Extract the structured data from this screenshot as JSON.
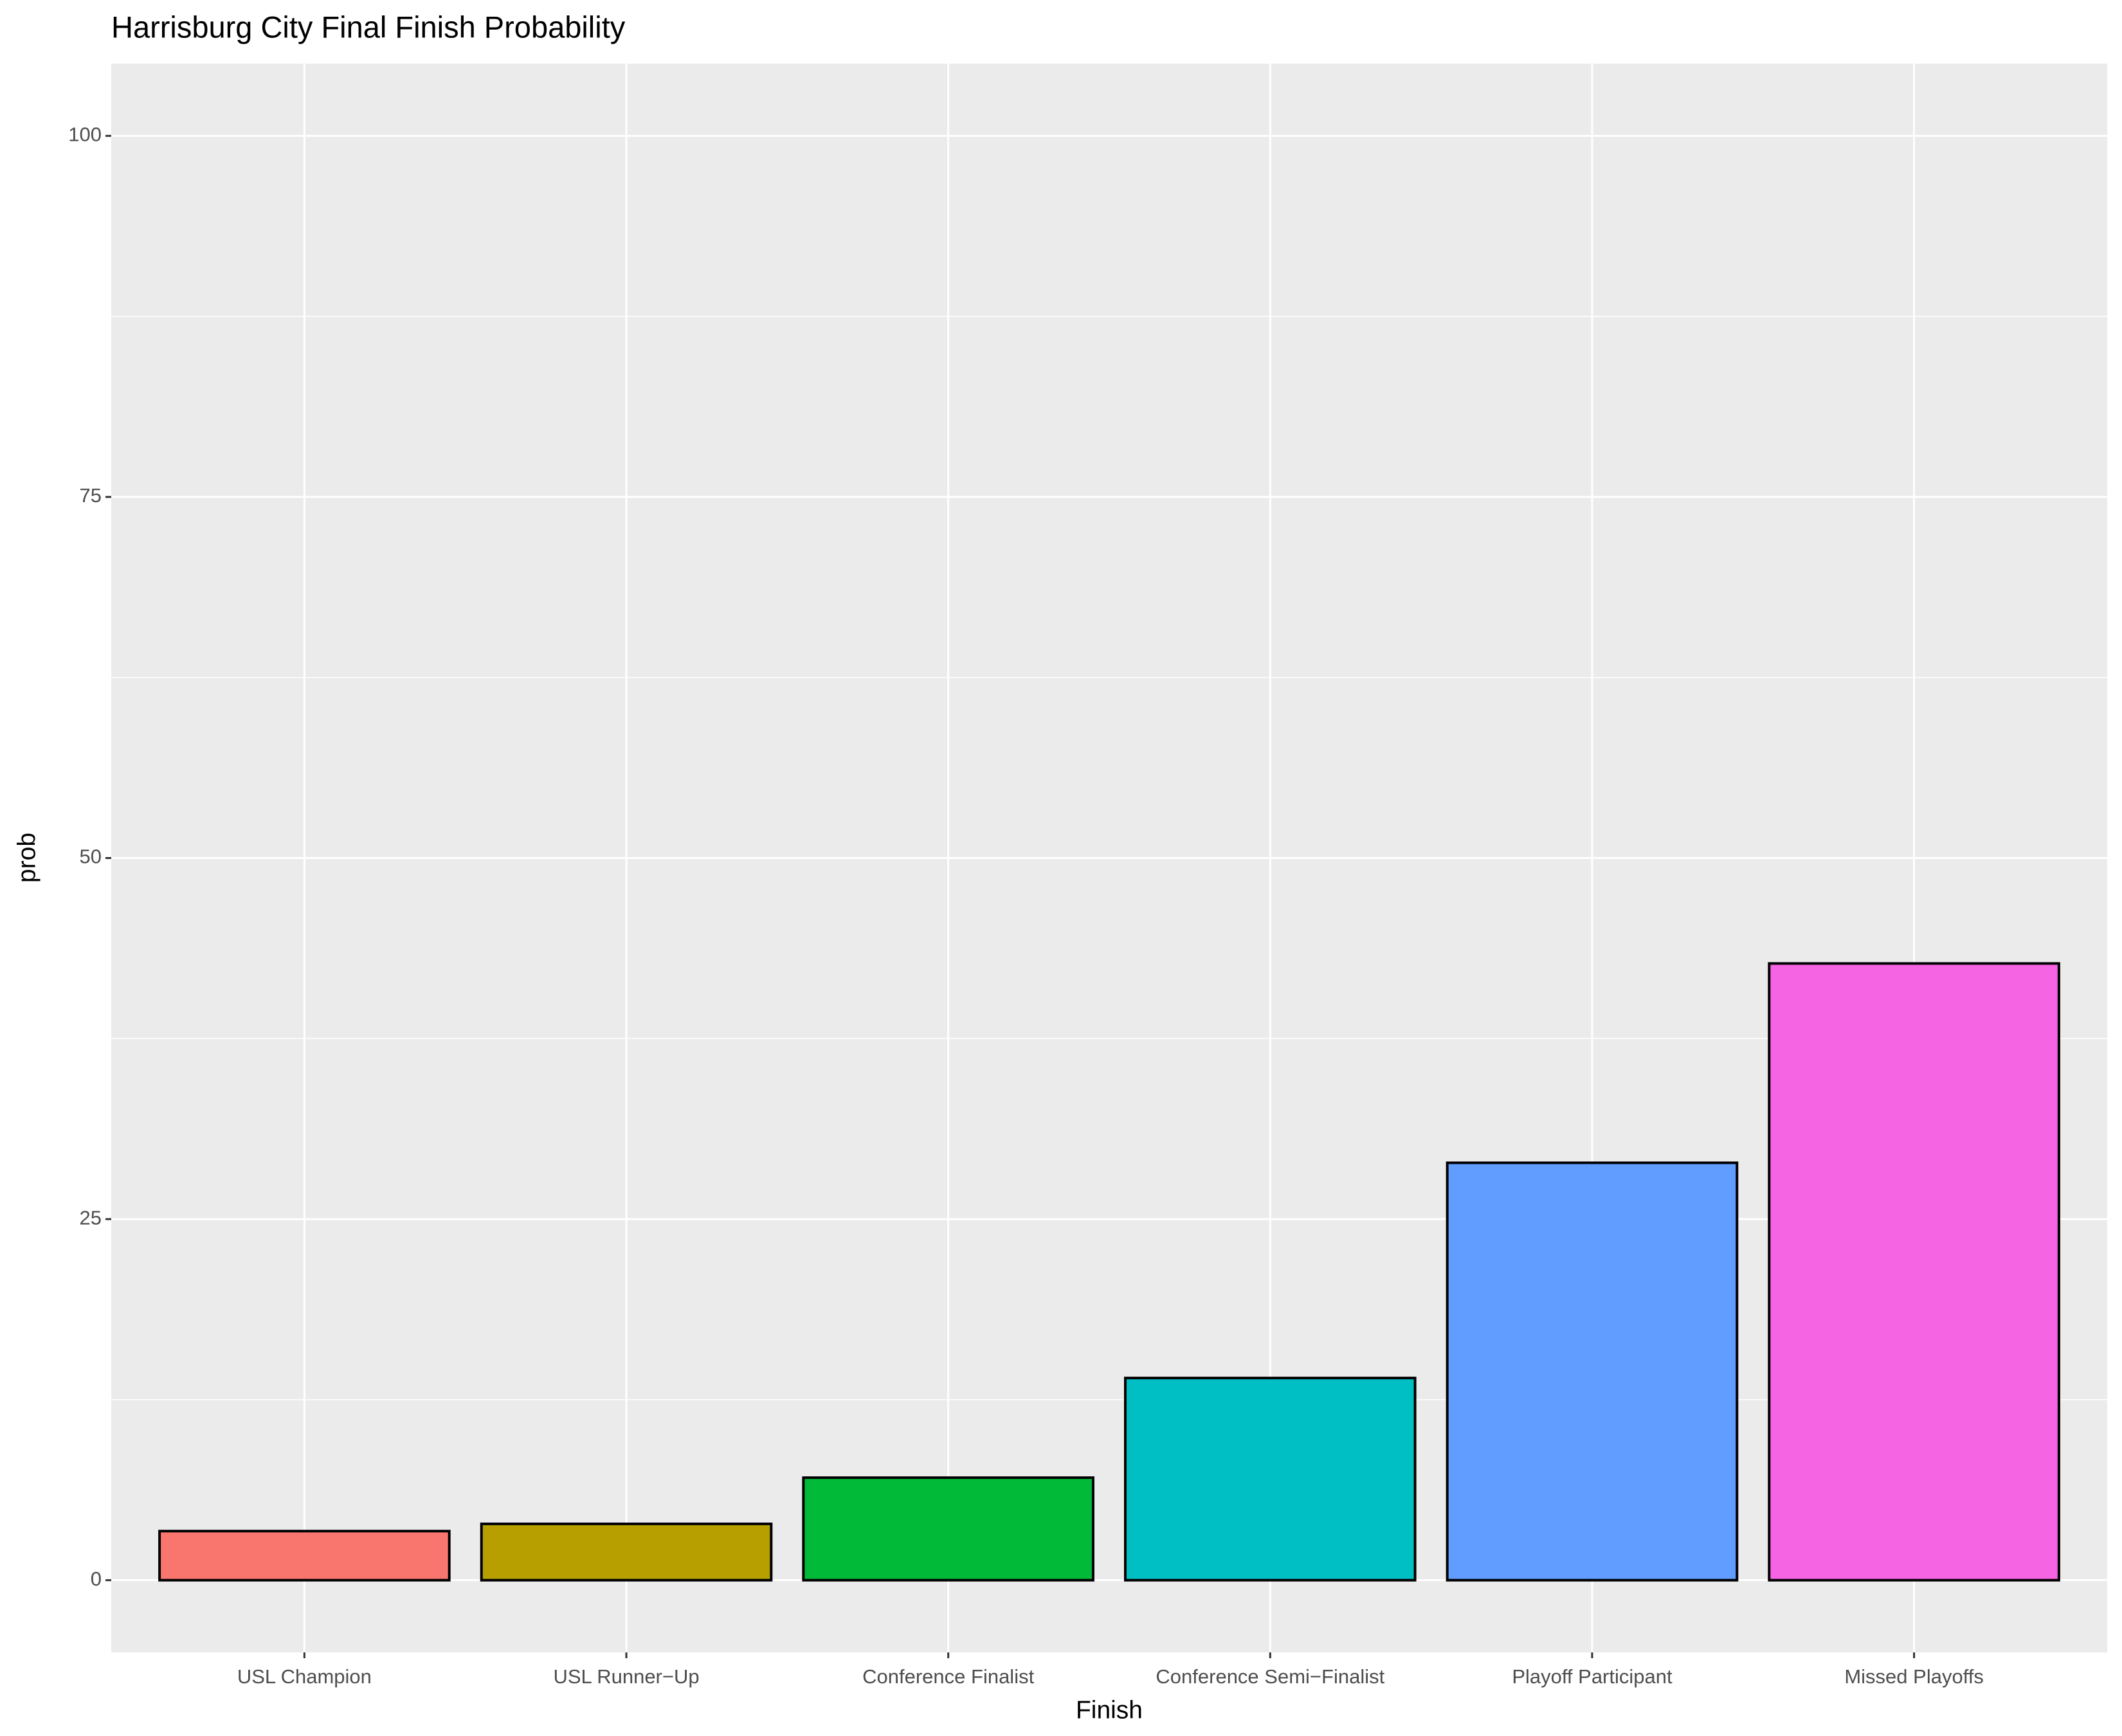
{
  "chart_data": {
    "type": "bar",
    "title": "Harrisburg City Final Finish Probability",
    "x_label": "Finish",
    "y_label": "prob",
    "categories": [
      "USL Champion",
      "USL Runner−Up",
      "Conference Finalist",
      "Conference Semi−Finalist",
      "Playoff Participant",
      "Missed Playoffs"
    ],
    "values": [
      3.4,
      3.9,
      7.1,
      14.0,
      28.9,
      42.7
    ],
    "colors": [
      "#F8766D",
      "#B79F00",
      "#00BA38",
      "#00BFC4",
      "#619CFF",
      "#F564E3"
    ],
    "ylim": [
      -5,
      105
    ],
    "yticks": [
      0,
      25,
      50,
      75,
      100
    ],
    "grid": true
  }
}
